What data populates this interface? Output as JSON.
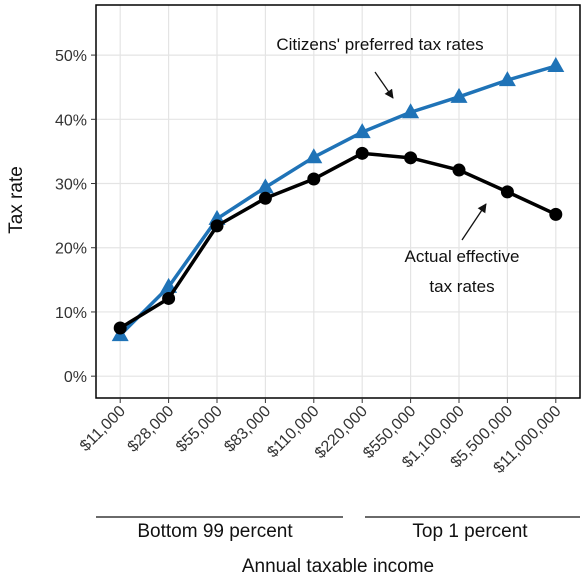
{
  "chart_data": {
    "type": "line",
    "xlabel": "Annual taxable income",
    "ylabel": "Tax rate",
    "categories": [
      "$11,000",
      "$28,000",
      "$55,000",
      "$83,000",
      "$110,000",
      "$220,000",
      "$550,000",
      "$1,100,000",
      "$5,500,000",
      "$11,000,000"
    ],
    "series": [
      {
        "color": "#1f73b7",
        "marker": "triangle",
        "values": [
          6.4,
          13.9,
          24.5,
          29.4,
          34.1,
          38.0,
          41.1,
          43.5,
          46.1,
          48.3
        ]
      },
      {
        "color": "#000000",
        "marker": "circle",
        "values": [
          7.5,
          12.1,
          23.4,
          27.7,
          30.7,
          34.7,
          34.0,
          32.1,
          28.7,
          25.2
        ]
      }
    ],
    "ylim": [
      -3.4,
      57.8
    ],
    "yticks": [
      {
        "value": 0,
        "label": "0%"
      },
      {
        "value": 10,
        "label": "10%"
      },
      {
        "value": 20,
        "label": "20%"
      },
      {
        "value": 30,
        "label": "30%"
      },
      {
        "value": 40,
        "label": "40%"
      },
      {
        "value": 50,
        "label": "50%"
      }
    ],
    "grid": true,
    "annotations": [
      "Citizens' preferred tax rates",
      "Actual effective",
      "tax rates"
    ],
    "groups": [
      "Bottom 99 percent",
      "Top 1 percent"
    ]
  }
}
